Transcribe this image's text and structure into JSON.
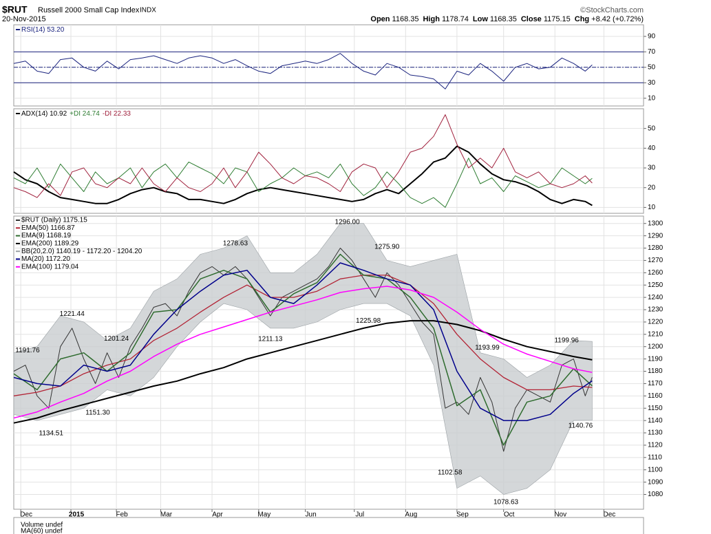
{
  "header": {
    "symbol": "$RUT",
    "name": "Russell 2000 Small Cap Index",
    "exchange": "INDX",
    "date": "20-Nov-2015",
    "copyright": "©StockCharts.com",
    "quote": [
      {
        "label": "Open",
        "value": "1168.35"
      },
      {
        "label": "High",
        "value": "1178.74"
      },
      {
        "label": "Low",
        "value": "1168.35"
      },
      {
        "label": "Close",
        "value": "1175.15"
      },
      {
        "label": "Chg",
        "value": "+8.42 (+0.72%)"
      }
    ]
  },
  "volume": {
    "legend": [
      "Volume undef",
      "MA(60) undef"
    ]
  },
  "chart_data": [
    {
      "type": "line",
      "xlim": [
        0,
        270
      ],
      "x": [
        0,
        5,
        10,
        15,
        20,
        25,
        30,
        35,
        40,
        45,
        50,
        55,
        60,
        65,
        70,
        75,
        80,
        85,
        90,
        95,
        100,
        105,
        110,
        115,
        120,
        125,
        130,
        135,
        140,
        145,
        150,
        155,
        160,
        165,
        170,
        175,
        180,
        185,
        190,
        195,
        200,
        205,
        210,
        215,
        220,
        225,
        230,
        235,
        240,
        245,
        248
      ],
      "ylim": [
        0,
        105
      ],
      "yticks": [
        10,
        30,
        50,
        70,
        90
      ],
      "reference_lines": [
        30,
        50,
        70
      ],
      "series": [
        {
          "name": "RSI(14) 53.20",
          "color": "#1a237e",
          "values": [
            55,
            58,
            45,
            42,
            60,
            62,
            50,
            45,
            58,
            48,
            60,
            62,
            65,
            60,
            55,
            62,
            65,
            62,
            55,
            60,
            52,
            45,
            42,
            52,
            55,
            58,
            55,
            60,
            68,
            55,
            45,
            40,
            55,
            50,
            40,
            38,
            35,
            22,
            45,
            40,
            55,
            45,
            32,
            50,
            55,
            48,
            50,
            62,
            55,
            45,
            53.2
          ]
        }
      ]
    },
    {
      "type": "line",
      "xlim": [
        0,
        270
      ],
      "x": [
        0,
        5,
        10,
        15,
        20,
        25,
        30,
        35,
        40,
        45,
        50,
        55,
        60,
        65,
        70,
        75,
        80,
        85,
        90,
        95,
        100,
        105,
        110,
        115,
        120,
        125,
        130,
        135,
        140,
        145,
        150,
        155,
        160,
        165,
        170,
        175,
        180,
        185,
        190,
        195,
        200,
        205,
        210,
        215,
        220,
        225,
        230,
        235,
        240,
        245,
        248
      ],
      "ylim": [
        7,
        60
      ],
      "yticks": [
        10,
        20,
        30,
        40,
        50
      ],
      "series": [
        {
          "name": "ADX(14) 10.92",
          "color": "#000000",
          "width": 2,
          "values": [
            28,
            24,
            22,
            18,
            15,
            14,
            13,
            12,
            12,
            14,
            17,
            19,
            20,
            18,
            17,
            14,
            14,
            13,
            12,
            14,
            17,
            19,
            20,
            19,
            18,
            17,
            16,
            15,
            14,
            13,
            14,
            17,
            19,
            17,
            22,
            27,
            33,
            35,
            41,
            38,
            32,
            27,
            24,
            23,
            21,
            18,
            14,
            12,
            14,
            13,
            11
          ]
        },
        {
          "name": "+DI 24.74",
          "color": "#2e7d32",
          "width": 1,
          "values": [
            25,
            22,
            30,
            20,
            32,
            25,
            18,
            28,
            22,
            25,
            30,
            20,
            28,
            32,
            25,
            33,
            30,
            27,
            22,
            30,
            28,
            18,
            22,
            25,
            30,
            26,
            28,
            25,
            32,
            22,
            16,
            20,
            28,
            22,
            15,
            12,
            15,
            10,
            22,
            35,
            22,
            25,
            18,
            26,
            23,
            20,
            22,
            30,
            26,
            22,
            24.74
          ]
        },
        {
          "name": "-DI 22.33",
          "color": "#a0203c",
          "width": 1,
          "values": [
            20,
            18,
            15,
            22,
            16,
            28,
            30,
            22,
            20,
            25,
            22,
            30,
            22,
            18,
            25,
            20,
            18,
            22,
            30,
            20,
            28,
            38,
            32,
            25,
            22,
            26,
            25,
            22,
            18,
            28,
            32,
            30,
            20,
            28,
            38,
            40,
            46,
            57,
            42,
            30,
            35,
            30,
            40,
            28,
            25,
            28,
            22,
            20,
            22,
            26,
            22.33
          ]
        }
      ]
    },
    {
      "type": "price",
      "xlim": [
        0,
        270
      ],
      "xticks": [
        {
          "value": 3,
          "label": "Dec"
        },
        {
          "value": 24.5,
          "label": "2015"
        },
        {
          "value": 44,
          "label": "Feb"
        },
        {
          "value": 63,
          "label": "Mar"
        },
        {
          "value": 85,
          "label": "Apr"
        },
        {
          "value": 105,
          "label": "May"
        },
        {
          "value": 125,
          "label": "Jun"
        },
        {
          "value": 146,
          "label": "Jul"
        },
        {
          "value": 168,
          "label": "Aug"
        },
        {
          "value": 190,
          "label": "Sep"
        },
        {
          "value": 210,
          "label": "Oct"
        },
        {
          "value": 232,
          "label": "Nov"
        },
        {
          "value": 253,
          "label": "Dec"
        }
      ],
      "ylim": [
        1068,
        1306
      ],
      "yticks": [
        1080,
        1090,
        1100,
        1110,
        1120,
        1130,
        1140,
        1150,
        1160,
        1170,
        1180,
        1190,
        1200,
        1210,
        1220,
        1230,
        1240,
        1250,
        1260,
        1270,
        1280,
        1290,
        1300
      ],
      "grid": true,
      "series": [
        {
          "name": "$RUT (Daily) 1175.15",
          "color": "#333333",
          "width": 1,
          "x": [
            0,
            5,
            10,
            15,
            20,
            25,
            30,
            35,
            40,
            45,
            50,
            55,
            60,
            65,
            70,
            75,
            80,
            85,
            90,
            95,
            100,
            105,
            110,
            115,
            120,
            125,
            130,
            135,
            140,
            145,
            150,
            155,
            160,
            165,
            170,
            175,
            180,
            185,
            190,
            195,
            200,
            205,
            210,
            215,
            220,
            225,
            230,
            235,
            240,
            245,
            248
          ],
          "values": [
            1180,
            1185,
            1160,
            1150,
            1200,
            1215,
            1190,
            1170,
            1195,
            1175,
            1200,
            1215,
            1232,
            1235,
            1225,
            1245,
            1260,
            1265,
            1258,
            1265,
            1255,
            1240,
            1225,
            1240,
            1245,
            1250,
            1255,
            1265,
            1280,
            1270,
            1255,
            1240,
            1260,
            1250,
            1235,
            1220,
            1210,
            1150,
            1155,
            1145,
            1175,
            1155,
            1115,
            1150,
            1165,
            1160,
            1155,
            1185,
            1190,
            1160,
            1175.15
          ]
        },
        {
          "name": "EMA(50) 1166.87",
          "color": "#b22234",
          "width": 1.3,
          "x": [
            0,
            10,
            20,
            30,
            40,
            50,
            60,
            70,
            80,
            90,
            100,
            110,
            120,
            130,
            140,
            150,
            160,
            170,
            180,
            190,
            200,
            210,
            220,
            230,
            240,
            248
          ],
          "values": [
            1160,
            1163,
            1168,
            1178,
            1185,
            1190,
            1205,
            1215,
            1228,
            1240,
            1250,
            1240,
            1240,
            1245,
            1255,
            1258,
            1258,
            1250,
            1235,
            1210,
            1190,
            1175,
            1165,
            1165,
            1168,
            1166.87
          ]
        },
        {
          "name": "EMA(9) 1168.19",
          "color": "#2e6b2e",
          "width": 1.5,
          "x": [
            0,
            10,
            20,
            30,
            40,
            50,
            60,
            70,
            80,
            90,
            100,
            110,
            120,
            130,
            140,
            150,
            160,
            170,
            180,
            190,
            200,
            210,
            220,
            230,
            240,
            248
          ],
          "values": [
            1178,
            1165,
            1190,
            1195,
            1180,
            1195,
            1228,
            1230,
            1255,
            1262,
            1255,
            1228,
            1243,
            1252,
            1275,
            1258,
            1255,
            1240,
            1215,
            1152,
            1165,
            1120,
            1155,
            1160,
            1182,
            1168.19
          ]
        },
        {
          "name": "EMA(200) 1189.29",
          "color": "#000000",
          "width": 2,
          "x": [
            0,
            10,
            20,
            30,
            40,
            50,
            60,
            70,
            80,
            90,
            100,
            110,
            120,
            130,
            140,
            150,
            160,
            170,
            180,
            190,
            200,
            210,
            220,
            230,
            240,
            248
          ],
          "values": [
            1138,
            1142,
            1148,
            1153,
            1158,
            1163,
            1168,
            1172,
            1178,
            1183,
            1190,
            1195,
            1200,
            1205,
            1210,
            1215,
            1219,
            1221,
            1221,
            1218,
            1213,
            1206,
            1200,
            1196,
            1192,
            1189.29
          ]
        },
        {
          "name": "BB(20,2.0) 1140.19 - 1172.20 - 1204.20",
          "color": "#c9cdd0",
          "line": "#9aa0a4",
          "x": [
            0,
            10,
            20,
            30,
            40,
            50,
            60,
            70,
            80,
            90,
            100,
            110,
            120,
            130,
            140,
            150,
            160,
            170,
            180,
            190,
            200,
            210,
            220,
            230,
            240,
            248
          ],
          "upper": [
            1195,
            1200,
            1225,
            1220,
            1205,
            1215,
            1245,
            1255,
            1275,
            1280,
            1290,
            1260,
            1260,
            1275,
            1300,
            1300,
            1270,
            1265,
            1270,
            1275,
            1195,
            1190,
            1175,
            1185,
            1205,
            1204.2
          ],
          "lower": [
            1145,
            1140,
            1145,
            1150,
            1165,
            1160,
            1175,
            1200,
            1220,
            1235,
            1230,
            1215,
            1215,
            1220,
            1230,
            1235,
            1235,
            1225,
            1185,
            1085,
            1095,
            1080,
            1085,
            1100,
            1140,
            1140.19
          ]
        },
        {
          "name": "MA(20) 1172.20",
          "color": "#00008b",
          "width": 1.5,
          "x": [
            0,
            10,
            20,
            30,
            40,
            50,
            60,
            70,
            80,
            90,
            100,
            110,
            120,
            130,
            140,
            150,
            160,
            170,
            180,
            190,
            200,
            210,
            220,
            230,
            240,
            248
          ],
          "values": [
            1175,
            1170,
            1168,
            1185,
            1180,
            1185,
            1210,
            1230,
            1245,
            1258,
            1262,
            1240,
            1235,
            1250,
            1268,
            1262,
            1255,
            1250,
            1230,
            1180,
            1150,
            1140,
            1140,
            1145,
            1162,
            1172.2
          ]
        },
        {
          "name": "EMA(100) 1179.04",
          "color": "#ff00ff",
          "width": 1.5,
          "x": [
            0,
            10,
            20,
            30,
            40,
            50,
            60,
            70,
            80,
            90,
            100,
            110,
            120,
            130,
            140,
            150,
            160,
            170,
            180,
            190,
            200,
            210,
            220,
            230,
            240,
            248
          ],
          "values": [
            1142,
            1147,
            1155,
            1162,
            1172,
            1180,
            1192,
            1202,
            1210,
            1216,
            1222,
            1228,
            1233,
            1238,
            1244,
            1247,
            1249,
            1246,
            1240,
            1228,
            1214,
            1202,
            1194,
            1188,
            1182,
            1179.04
          ]
        }
      ],
      "annotations": [
        {
          "x": 0,
          "value": 1191.76,
          "label": "1191.76"
        },
        {
          "x": 25,
          "value": 1221.44,
          "label": "1221.44"
        },
        {
          "x": 44,
          "value": 1201.24,
          "label": "1201.24"
        },
        {
          "x": 36,
          "value": 1151.3,
          "label": "1151.30"
        },
        {
          "x": 16,
          "value": 1134.51,
          "label": "1134.51"
        },
        {
          "x": 95,
          "value": 1278.63,
          "label": "1278.63"
        },
        {
          "x": 110,
          "value": 1211.13,
          "label": "1211.13"
        },
        {
          "x": 143,
          "value": 1296.0,
          "label": "1296.00"
        },
        {
          "x": 160,
          "value": 1275.9,
          "label": "1275.90"
        },
        {
          "x": 152,
          "value": 1225.98,
          "label": "1225.98"
        },
        {
          "x": 203,
          "value": 1193.99,
          "label": "1193.99"
        },
        {
          "x": 187,
          "value": 1102.58,
          "label": "1102.58"
        },
        {
          "x": 211,
          "value": 1078.63,
          "label": "1078.63"
        },
        {
          "x": 237,
          "value": 1199.96,
          "label": "1199.96"
        },
        {
          "x": 243,
          "value": 1140.76,
          "label": "1140.76"
        }
      ]
    }
  ]
}
